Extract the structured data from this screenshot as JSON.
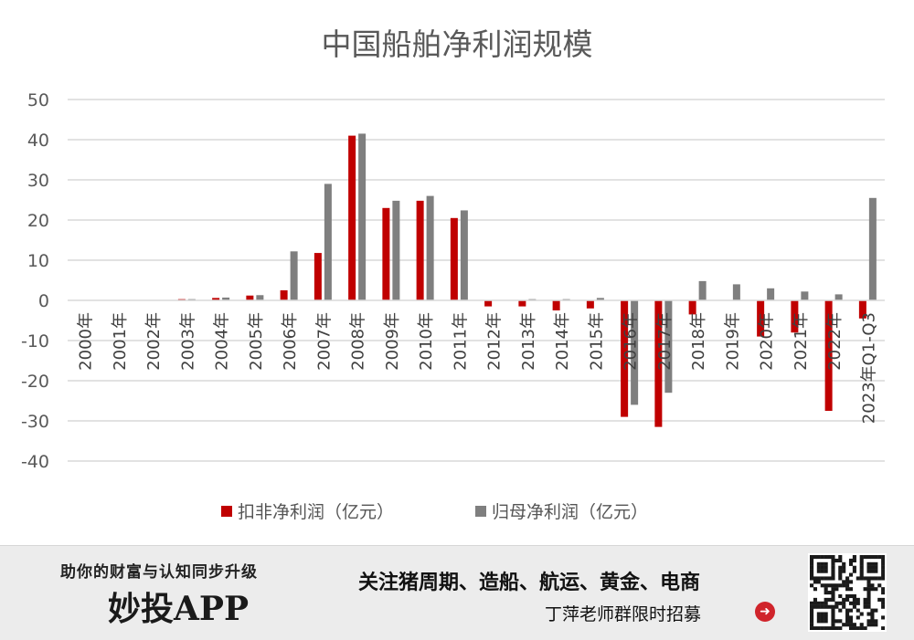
{
  "chart_data": {
    "type": "bar",
    "title": "中国船舶净利润规模",
    "categories": [
      "2000年",
      "2001年",
      "2002年",
      "2003年",
      "2004年",
      "2005年",
      "2006年",
      "2007年",
      "2008年",
      "2009年",
      "2010年",
      "2011年",
      "2012年",
      "2013年",
      "2014年",
      "2015年",
      "2016年",
      "2017年",
      "2018年",
      "2019年",
      "2020年",
      "2021年",
      "2022年",
      "2023年Q1-Q3"
    ],
    "series": [
      {
        "name": "扣非净利润（亿元）",
        "color": "#c00000",
        "values": [
          0,
          0,
          0,
          0.3,
          0.6,
          1.2,
          2.5,
          11.8,
          41,
          23,
          24.8,
          20.5,
          -1.5,
          -1.5,
          -2.5,
          -2,
          -29,
          -31.5,
          -3.5,
          0,
          -9,
          -8,
          -27.5,
          -4.5
        ]
      },
      {
        "name": "归母净利润（亿元）",
        "color": "#7f7f7f",
        "values": [
          0,
          0,
          0,
          0.3,
          0.7,
          1.3,
          12.2,
          29,
          41.5,
          24.8,
          26,
          22.4,
          0,
          0.3,
          0.3,
          0.6,
          -26,
          -23,
          4.8,
          4,
          3,
          2.2,
          1.5,
          25.5
        ]
      }
    ],
    "yticks": [
      50,
      40,
      30,
      20,
      10,
      0,
      -10,
      -20,
      -30,
      -40
    ],
    "ylim": [
      -40,
      50
    ],
    "grid": true,
    "legend": "bottom"
  },
  "banner": {
    "slogan": "助你的财富与认知同步升级",
    "brand": "妙投APP",
    "headline": "关注猪周期、造船、航运、黄金、电商",
    "recruit": "丁萍老师群限时招募",
    "arrow_icon": "➜",
    "qr_icon": "qr-code-icon"
  }
}
